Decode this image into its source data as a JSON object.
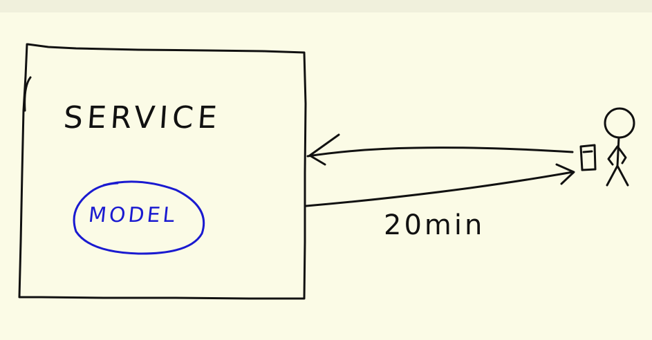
{
  "diagram": {
    "service_label": "SERVICE",
    "model_label": "MODEL",
    "duration_label": "20min"
  },
  "colors": {
    "background": "#fbfbe6",
    "ink_black": "#111111",
    "ink_blue": "#1a1ad0"
  }
}
